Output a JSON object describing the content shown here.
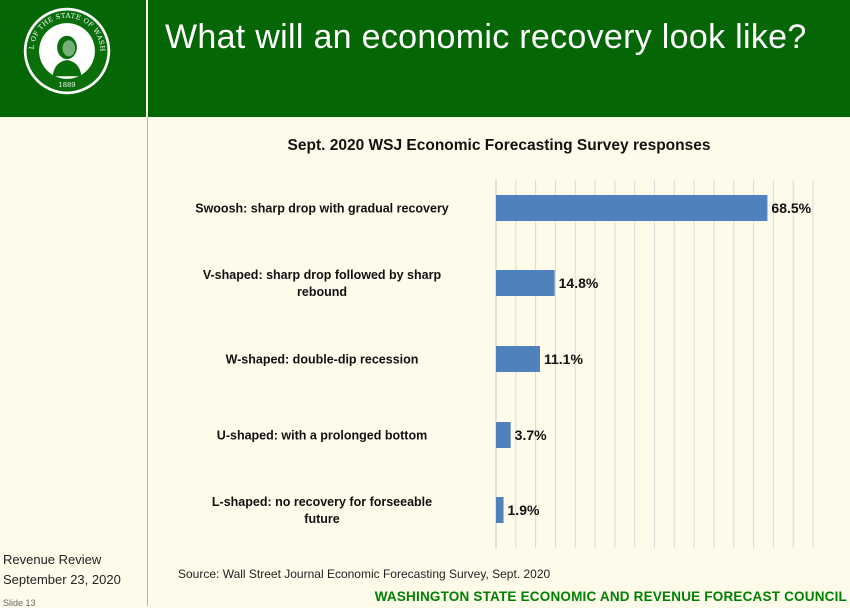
{
  "header": {
    "title": "What will an economic recovery look like?",
    "seal": {
      "text_top": "THE SEAL OF THE STATE OF WASHINGTON",
      "year": "1889"
    }
  },
  "footer": {
    "left_line1": "Revenue Review",
    "left_line2": "September 23, 2020",
    "slide_number": "Slide 13",
    "source": "Source: Wall Street Journal Economic Forecasting Survey, Sept. 2020",
    "organization": "WASHINGTON STATE ECONOMIC AND REVENUE FORECAST COUNCIL"
  },
  "colors": {
    "header_green": "#056605",
    "background": "#fefbea",
    "bar": "#4f81bd",
    "council_text": "#008000"
  },
  "chart_data": {
    "type": "bar",
    "orientation": "horizontal",
    "title": "Sept. 2020 WSJ Economic Forecasting Survey responses",
    "categories": [
      "Swoosh: sharp drop with gradual recovery",
      "V-shaped: sharp drop followed by sharp rebound",
      "W-shaped: double-dip recession",
      "U-shaped: with a prolonged bottom",
      "L-shaped:  no recovery for forseeable future"
    ],
    "category_lines": [
      [
        "Swoosh: sharp drop with gradual recovery"
      ],
      [
        "V-shaped: sharp drop followed by sharp",
        "rebound"
      ],
      [
        "W-shaped: double-dip recession"
      ],
      [
        "U-shaped: with a prolonged bottom"
      ],
      [
        "L-shaped:  no recovery for forseeable",
        "future"
      ]
    ],
    "values": [
      68.5,
      14.8,
      11.1,
      3.7,
      1.9
    ],
    "data_labels": [
      "68.5%",
      "14.8%",
      "11.1%",
      "3.7%",
      "1.9%"
    ],
    "xlim": [
      0,
      80
    ],
    "grid": true,
    "xlabel": "",
    "ylabel": ""
  }
}
